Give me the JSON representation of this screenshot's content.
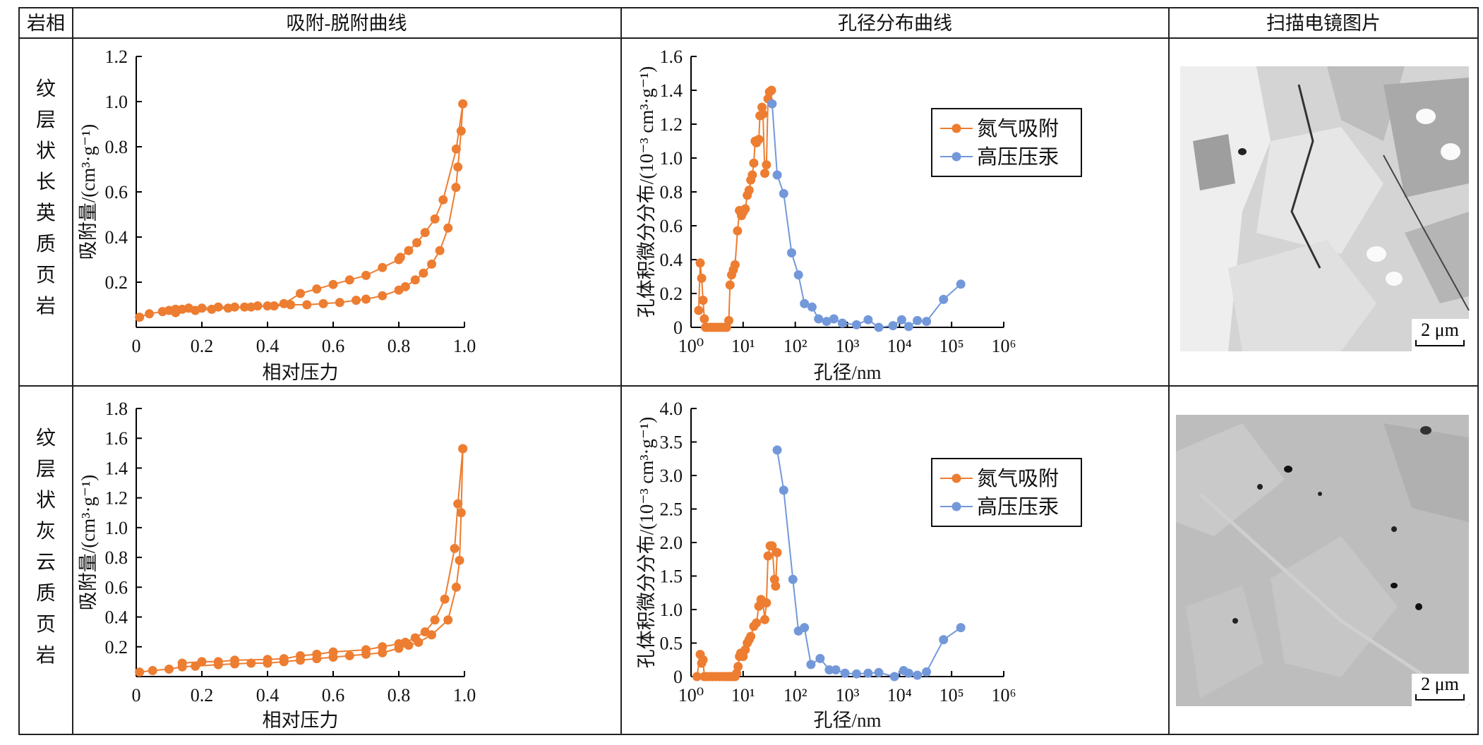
{
  "table": {
    "headers": [
      "岩相",
      "吸附-脱附曲线",
      "孔径分布曲线",
      "扫描电镜图片"
    ],
    "rows": [
      {
        "lithofacies": [
          "纹",
          "层",
          "状",
          "长",
          "英",
          "质",
          "页",
          "岩"
        ],
        "sem_scale": "2 μm"
      },
      {
        "lithofacies": [
          "纹",
          "层",
          "状",
          "灰",
          "云",
          "质",
          "页",
          "岩"
        ],
        "sem_scale": "2 μm"
      }
    ]
  },
  "colors": {
    "nitrogen": "#ED7D31",
    "mercury": "#7398DA"
  },
  "chart_data": [
    {
      "type": "scatter",
      "row": 1,
      "xlabel": "相对压力",
      "ylabel": "吸附量/(cm³·g⁻¹)",
      "xlim": [
        0,
        1.0
      ],
      "ylim": [
        0,
        1.2
      ],
      "xticks": [
        "0",
        "0.2",
        "0.4",
        "0.6",
        "0.8",
        "1.0"
      ],
      "yticks": [
        "0.2",
        "0.4",
        "0.6",
        "0.8",
        "1.0",
        "1.2"
      ],
      "series": [
        {
          "points": [
            [
              0.01,
              0.045
            ],
            [
              0.04,
              0.06
            ],
            [
              0.08,
              0.07
            ],
            [
              0.1,
              0.075
            ],
            [
              0.12,
              0.065
            ],
            [
              0.14,
              0.08
            ],
            [
              0.16,
              0.085
            ],
            [
              0.18,
              0.075
            ],
            [
              0.23,
              0.08
            ],
            [
              0.28,
              0.085
            ],
            [
              0.33,
              0.09
            ],
            [
              0.37,
              0.095
            ],
            [
              0.42,
              0.095
            ],
            [
              0.47,
              0.1
            ],
            [
              0.52,
              0.1
            ],
            [
              0.57,
              0.105
            ],
            [
              0.62,
              0.11
            ],
            [
              0.67,
              0.12
            ],
            [
              0.7,
              0.125
            ],
            [
              0.75,
              0.14
            ],
            [
              0.8,
              0.165
            ],
            [
              0.82,
              0.18
            ],
            [
              0.85,
              0.21
            ],
            [
              0.875,
              0.24
            ],
            [
              0.9,
              0.28
            ],
            [
              0.925,
              0.34
            ],
            [
              0.95,
              0.44
            ],
            [
              0.974,
              0.62
            ],
            [
              0.98,
              0.71
            ],
            [
              0.99,
              0.87
            ],
            [
              0.995,
              0.99
            ]
          ]
        },
        {
          "points": [
            [
              0.995,
              0.99
            ],
            [
              0.975,
              0.79
            ],
            [
              0.935,
              0.565
            ],
            [
              0.91,
              0.48
            ],
            [
              0.88,
              0.42
            ],
            [
              0.855,
              0.375
            ],
            [
              0.83,
              0.34
            ],
            [
              0.805,
              0.31
            ],
            [
              0.8,
              0.3
            ],
            [
              0.75,
              0.265
            ],
            [
              0.7,
              0.23
            ],
            [
              0.65,
              0.21
            ],
            [
              0.6,
              0.19
            ],
            [
              0.55,
              0.17
            ],
            [
              0.5,
              0.15
            ],
            [
              0.45,
              0.105
            ],
            [
              0.4,
              0.095
            ],
            [
              0.35,
              0.09
            ],
            [
              0.3,
              0.09
            ],
            [
              0.25,
              0.09
            ],
            [
              0.2,
              0.085
            ],
            [
              0.16,
              0.085
            ],
            [
              0.12,
              0.08
            ]
          ]
        }
      ]
    },
    {
      "type": "line",
      "row": 1,
      "xlabel": "孔径/nm",
      "ylabel": "孔体积微分分布/(10⁻³ cm³·g⁻¹)",
      "xscale": "log",
      "xlim": [
        1,
        1000000
      ],
      "ylim": [
        0,
        1.6
      ],
      "xticks": [
        "10⁰",
        "10¹",
        "10²",
        "10³",
        "10⁴",
        "10⁵",
        "10⁶"
      ],
      "yticks": [
        "0",
        "0.2",
        "0.4",
        "0.6",
        "0.8",
        "1.0",
        "1.2",
        "1.4",
        "1.6"
      ],
      "legend": "top-right",
      "series": [
        {
          "name": "氮气吸附",
          "points": [
            [
              1.4,
              0.1
            ],
            [
              1.5,
              0.38
            ],
            [
              1.6,
              0.29
            ],
            [
              1.7,
              0.16
            ],
            [
              1.8,
              0.05
            ],
            [
              1.9,
              0
            ],
            [
              2.1,
              0
            ],
            [
              2.4,
              0
            ],
            [
              2.7,
              0
            ],
            [
              3,
              0
            ],
            [
              3.4,
              0
            ],
            [
              3.8,
              0
            ],
            [
              4.3,
              0
            ],
            [
              4.8,
              0
            ],
            [
              5.3,
              0.04
            ],
            [
              5.6,
              0.25
            ],
            [
              6,
              0.31
            ],
            [
              6.5,
              0.34
            ],
            [
              7,
              0.37
            ],
            [
              7.8,
              0.57
            ],
            [
              8.5,
              0.69
            ],
            [
              9.3,
              0.66
            ],
            [
              10,
              0.68
            ],
            [
              11,
              0.7
            ],
            [
              12,
              0.78
            ],
            [
              13,
              0.81
            ],
            [
              14,
              0.87
            ],
            [
              15,
              0.9
            ],
            [
              16,
              0.97
            ],
            [
              17,
              1.1
            ],
            [
              18,
              1.09
            ],
            [
              20,
              1.11
            ],
            [
              21,
              1.25
            ],
            [
              23,
              1.3
            ],
            [
              24,
              1.26
            ],
            [
              26,
              0.91
            ],
            [
              28,
              0.96
            ],
            [
              30,
              1.35
            ],
            [
              32,
              1.39
            ],
            [
              35,
              1.4
            ]
          ]
        },
        {
          "name": "高压压汞",
          "points": [
            [
              36,
              1.32
            ],
            [
              45,
              0.9
            ],
            [
              60,
              0.79
            ],
            [
              85,
              0.44
            ],
            [
              115,
              0.31
            ],
            [
              150,
              0.14
            ],
            [
              210,
              0.12
            ],
            [
              280,
              0.05
            ],
            [
              400,
              0.035
            ],
            [
              550,
              0.05
            ],
            [
              800,
              0.025
            ],
            [
              1500,
              0.015
            ],
            [
              2500,
              0.045
            ],
            [
              4000,
              0
            ],
            [
              7500,
              0.01
            ],
            [
              11000,
              0.045
            ],
            [
              15000,
              0.005
            ],
            [
              22000,
              0.04
            ],
            [
              33000,
              0.035
            ],
            [
              70000,
              0.165
            ],
            [
              150000,
              0.255
            ]
          ]
        }
      ]
    },
    {
      "type": "scatter",
      "row": 2,
      "xlabel": "相对压力",
      "ylabel": "吸附量/(cm³·g⁻¹)",
      "xlim": [
        0,
        1.0
      ],
      "ylim": [
        0,
        1.8
      ],
      "xticks": [
        "0",
        "0.2",
        "0.4",
        "0.6",
        "0.8",
        "1.0"
      ],
      "yticks": [
        "0.2",
        "0.4",
        "0.6",
        "0.8",
        "1.0",
        "1.2",
        "1.4",
        "1.6",
        "1.8"
      ],
      "series": [
        {
          "points": [
            [
              0.01,
              0.03
            ],
            [
              0.05,
              0.04
            ],
            [
              0.1,
              0.05
            ],
            [
              0.14,
              0.065
            ],
            [
              0.18,
              0.07
            ],
            [
              0.25,
              0.08
            ],
            [
              0.3,
              0.085
            ],
            [
              0.35,
              0.09
            ],
            [
              0.4,
              0.09
            ],
            [
              0.45,
              0.1
            ],
            [
              0.5,
              0.11
            ],
            [
              0.55,
              0.12
            ],
            [
              0.6,
              0.13
            ],
            [
              0.65,
              0.14
            ],
            [
              0.7,
              0.15
            ],
            [
              0.75,
              0.16
            ],
            [
              0.8,
              0.19
            ],
            [
              0.83,
              0.21
            ],
            [
              0.86,
              0.23
            ],
            [
              0.9,
              0.28
            ],
            [
              0.95,
              0.38
            ],
            [
              0.975,
              0.6
            ],
            [
              0.985,
              0.78
            ],
            [
              0.99,
              1.1
            ],
            [
              0.995,
              1.53
            ]
          ]
        },
        {
          "points": [
            [
              0.995,
              1.53
            ],
            [
              0.98,
              1.16
            ],
            [
              0.97,
              0.86
            ],
            [
              0.94,
              0.52
            ],
            [
              0.91,
              0.38
            ],
            [
              0.88,
              0.3
            ],
            [
              0.85,
              0.26
            ],
            [
              0.82,
              0.23
            ],
            [
              0.8,
              0.22
            ],
            [
              0.75,
              0.2
            ],
            [
              0.7,
              0.18
            ],
            [
              0.6,
              0.165
            ],
            [
              0.55,
              0.15
            ],
            [
              0.5,
              0.14
            ],
            [
              0.45,
              0.12
            ],
            [
              0.4,
              0.115
            ],
            [
              0.3,
              0.11
            ],
            [
              0.25,
              0.1
            ],
            [
              0.2,
              0.1
            ],
            [
              0.14,
              0.09
            ]
          ]
        }
      ]
    },
    {
      "type": "line",
      "row": 2,
      "xlabel": "孔径/nm",
      "ylabel": "孔体积微分分布/(10⁻³ cm³·g⁻¹)",
      "xscale": "log",
      "xlim": [
        1,
        1000000
      ],
      "ylim": [
        0,
        4.0
      ],
      "xticks": [
        "10⁰",
        "10¹",
        "10²",
        "10³",
        "10⁴",
        "10⁵",
        "10⁶"
      ],
      "yticks": [
        "0",
        "0.5",
        "1.0",
        "1.5",
        "2.0",
        "2.5",
        "3.0",
        "3.5",
        "4.0"
      ],
      "legend": "top-right",
      "series": [
        {
          "name": "氮气吸附",
          "points": [
            [
              1.3,
              0
            ],
            [
              1.5,
              0.33
            ],
            [
              1.6,
              0.2
            ],
            [
              1.7,
              0.25
            ],
            [
              1.8,
              0
            ],
            [
              2,
              0
            ],
            [
              2.3,
              0
            ],
            [
              2.6,
              0
            ],
            [
              3,
              0
            ],
            [
              3.5,
              0
            ],
            [
              4,
              0
            ],
            [
              4.5,
              0
            ],
            [
              5,
              0
            ],
            [
              5.5,
              0
            ],
            [
              6,
              0
            ],
            [
              6.5,
              0
            ],
            [
              7,
              0
            ],
            [
              7.5,
              0.05
            ],
            [
              8,
              0.15
            ],
            [
              8.5,
              0.3
            ],
            [
              9,
              0.35
            ],
            [
              10,
              0.3
            ],
            [
              11,
              0.4
            ],
            [
              12,
              0.5
            ],
            [
              13,
              0.55
            ],
            [
              14,
              0.6
            ],
            [
              16,
              0.75
            ],
            [
              18,
              0.8
            ],
            [
              20,
              1.05
            ],
            [
              22,
              1.15
            ],
            [
              24,
              1.1
            ],
            [
              26,
              0.85
            ],
            [
              28,
              1.1
            ],
            [
              30,
              1.8
            ],
            [
              33,
              1.95
            ],
            [
              36,
              1.95
            ],
            [
              40,
              1.45
            ],
            [
              42,
              1.35
            ],
            [
              45,
              1.85
            ]
          ]
        },
        {
          "name": "高压压汞",
          "points": [
            [
              45,
              3.38
            ],
            [
              60,
              2.78
            ],
            [
              90,
              1.45
            ],
            [
              115,
              0.68
            ],
            [
              150,
              0.73
            ],
            [
              200,
              0.18
            ],
            [
              300,
              0.27
            ],
            [
              450,
              0.1
            ],
            [
              600,
              0.1
            ],
            [
              900,
              0.05
            ],
            [
              1500,
              0.04
            ],
            [
              2500,
              0.05
            ],
            [
              4000,
              0.06
            ],
            [
              8000,
              0
            ],
            [
              12000,
              0.09
            ],
            [
              15000,
              0.05
            ],
            [
              22000,
              0.02
            ],
            [
              33000,
              0.07
            ],
            [
              70000,
              0.55
            ],
            [
              150000,
              0.73
            ]
          ]
        }
      ]
    }
  ]
}
